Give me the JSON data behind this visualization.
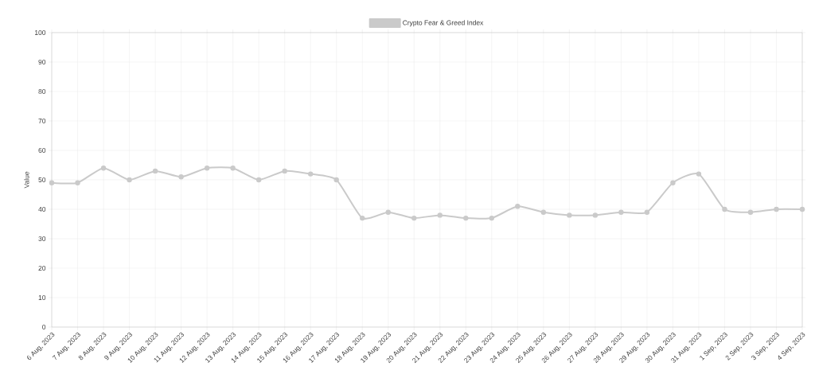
{
  "chart_data": {
    "type": "line",
    "ylabel": "Value",
    "categories": [
      "6 Aug, 2023",
      "7 Aug, 2023",
      "8 Aug, 2023",
      "9 Aug, 2023",
      "10 Aug, 2023",
      "11 Aug, 2023",
      "12 Aug, 2023",
      "13 Aug, 2023",
      "14 Aug, 2023",
      "15 Aug, 2023",
      "16 Aug, 2023",
      "17 Aug, 2023",
      "18 Aug, 2023",
      "19 Aug, 2023",
      "20 Aug, 2023",
      "21 Aug, 2023",
      "22 Aug, 2023",
      "23 Aug, 2023",
      "24 Aug, 2023",
      "25 Aug, 2023",
      "26 Aug, 2023",
      "27 Aug, 2023",
      "28 Aug, 2023",
      "29 Aug, 2023",
      "30 Aug, 2023",
      "31 Aug, 2023",
      "1 Sep, 2023",
      "2 Sep, 2023",
      "3 Sep, 2023",
      "4 Sep, 2023"
    ],
    "series": [
      {
        "name": "Crypto Fear & Greed Index",
        "color": "#cacaca",
        "values": [
          49,
          49,
          54,
          50,
          53,
          51,
          54,
          54,
          50,
          53,
          52,
          50,
          37,
          39,
          37,
          38,
          37,
          37,
          41,
          39,
          38,
          38,
          39,
          39,
          49,
          52,
          40,
          39,
          40,
          40
        ]
      }
    ],
    "ylim": [
      0,
      100
    ],
    "yticks": [
      0,
      10,
      20,
      30,
      40,
      50,
      60,
      70,
      80,
      90,
      100
    ],
    "grid": true,
    "legend": "top",
    "marker": "circle"
  }
}
